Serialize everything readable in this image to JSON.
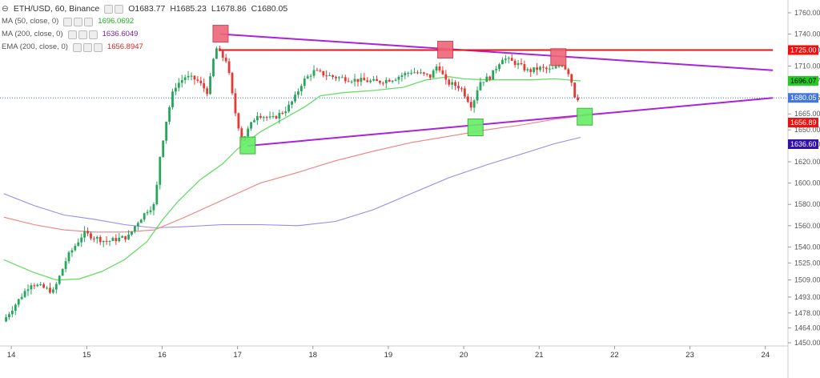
{
  "legend": {
    "symbol": "ETH/USD, 60, Binance",
    "ohlc": {
      "open": "O1683.77",
      "high": "H1685.23",
      "low": "L1678.86",
      "close": "C1680.05"
    },
    "indicators": [
      {
        "label": "MA (50, close, 0)",
        "value": "1696.0692",
        "color": "#22aa22"
      },
      {
        "label": "MA (200, close, 0)",
        "value": "1636.6049",
        "color": "#7722aa"
      },
      {
        "label": "EMA (200, close, 0)",
        "value": "1656.8947",
        "color": "#dd2222"
      }
    ]
  },
  "colors": {
    "up": "#26a65b",
    "down": "#e53935",
    "ma50": "#66dd66",
    "ma200": "#9988ee",
    "ema200": "#f08080",
    "trend": "#aa22dd",
    "resistance": "#ee1111",
    "marker_red": "#ee6677",
    "marker_green": "#66ee66",
    "price_line": "#4477cc"
  },
  "chart_data": {
    "type": "candlestick",
    "x_ticks": [
      {
        "label": "14",
        "x": 14
      },
      {
        "label": "15",
        "x": 15
      },
      {
        "label": "16",
        "x": 16
      },
      {
        "label": "17",
        "x": 17
      },
      {
        "label": "18",
        "x": 18
      },
      {
        "label": "19",
        "x": 19
      },
      {
        "label": "20",
        "x": 20
      },
      {
        "label": "21",
        "x": 21
      },
      {
        "label": "22",
        "x": 22
      },
      {
        "label": "23",
        "x": 23
      },
      {
        "label": "24",
        "x": 24
      }
    ],
    "y_ticks": [
      "1760.00",
      "1740.00",
      "1725.00",
      "1710.00",
      "1696.07",
      "1680.05",
      "1665.00",
      "1650.00",
      "1636.60",
      "1620.00",
      "1600.00",
      "1580.00",
      "1560.00",
      "1540.00",
      "1525.00",
      "1509.00",
      "1493.00",
      "1478.00",
      "1464.00",
      "1450.00"
    ],
    "y_tick_values": [
      1760,
      1740,
      1725,
      1710,
      1696.07,
      1680.05,
      1665,
      1650,
      1636.6,
      1620,
      1600,
      1580,
      1560,
      1540,
      1525,
      1509,
      1493,
      1478,
      1464,
      1450
    ],
    "price_tags": [
      {
        "label": "1725.00",
        "value": 1725,
        "bg": "#ee1111",
        "fg": "#ffffff"
      },
      {
        "label": "1696.07",
        "value": 1696.07,
        "bg": "#22cc22",
        "fg": "#000000"
      },
      {
        "label": "1680.05",
        "value": 1680.05,
        "bg": "#4477dd",
        "fg": "#ffffff"
      },
      {
        "label": "1656.89",
        "value": 1656.89,
        "bg": "#ee1111",
        "fg": "#ffffff"
      },
      {
        "label": "1636.60",
        "value": 1636.6,
        "bg": "#3311aa",
        "fg": "#ffffff"
      }
    ],
    "current_price": 1680.05,
    "trend_lines": [
      {
        "name": "upper-trendline",
        "x1": 16.77,
        "y1": 1740,
        "x2": 24.1,
        "y2": 1706,
        "color": "#aa22dd"
      },
      {
        "name": "lower-trendline",
        "x1": 17.13,
        "y1": 1635,
        "x2": 24.1,
        "y2": 1680,
        "color": "#aa22dd"
      },
      {
        "name": "resistance-line",
        "x1": 16.77,
        "y1": 1725,
        "x2": 24.1,
        "y2": 1725,
        "color": "#ee1111"
      }
    ],
    "markers": [
      {
        "name": "top-marker-1",
        "x": 16.77,
        "y": 1740,
        "type": "red"
      },
      {
        "name": "top-marker-2",
        "x": 19.75,
        "y": 1725,
        "type": "red"
      },
      {
        "name": "top-marker-3",
        "x": 21.25,
        "y": 1718,
        "type": "red"
      },
      {
        "name": "bottom-marker-1",
        "x": 17.13,
        "y": 1635,
        "type": "green"
      },
      {
        "name": "bottom-marker-2",
        "x": 20.15,
        "y": 1652,
        "type": "green"
      },
      {
        "name": "bottom-marker-3",
        "x": 21.6,
        "y": 1662,
        "type": "green"
      }
    ],
    "candle_anchors": [
      [
        13.93,
        1470
      ],
      [
        14.3,
        1506
      ],
      [
        14.6,
        1498
      ],
      [
        14.78,
        1530
      ],
      [
        15.0,
        1553
      ],
      [
        15.3,
        1545
      ],
      [
        15.6,
        1550
      ],
      [
        15.7,
        1562
      ],
      [
        15.85,
        1575
      ],
      [
        15.95,
        1580
      ],
      [
        16.0,
        1620
      ],
      [
        16.1,
        1660
      ],
      [
        16.2,
        1690
      ],
      [
        16.35,
        1700
      ],
      [
        16.5,
        1697
      ],
      [
        16.65,
        1685
      ],
      [
        16.75,
        1728
      ],
      [
        16.82,
        1720
      ],
      [
        16.9,
        1715
      ],
      [
        17.0,
        1670
      ],
      [
        17.1,
        1640
      ],
      [
        17.3,
        1665
      ],
      [
        17.5,
        1660
      ],
      [
        17.7,
        1670
      ],
      [
        17.8,
        1680
      ],
      [
        17.9,
        1695
      ],
      [
        18.05,
        1705
      ],
      [
        18.3,
        1700
      ],
      [
        18.6,
        1697
      ],
      [
        18.9,
        1695
      ],
      [
        19.1,
        1698
      ],
      [
        19.35,
        1705
      ],
      [
        19.6,
        1700
      ],
      [
        19.7,
        1712
      ],
      [
        19.8,
        1695
      ],
      [
        20.0,
        1690
      ],
      [
        20.15,
        1672
      ],
      [
        20.25,
        1695
      ],
      [
        20.4,
        1700
      ],
      [
        20.55,
        1718
      ],
      [
        20.75,
        1712
      ],
      [
        20.9,
        1705
      ],
      [
        21.05,
        1708
      ],
      [
        21.2,
        1706
      ],
      [
        21.35,
        1712
      ],
      [
        21.45,
        1702
      ],
      [
        21.52,
        1680
      ]
    ],
    "ma50_points": [
      [
        13.9,
        1528
      ],
      [
        14.3,
        1516
      ],
      [
        14.6,
        1509
      ],
      [
        14.9,
        1510
      ],
      [
        15.2,
        1517
      ],
      [
        15.5,
        1528
      ],
      [
        15.8,
        1545
      ],
      [
        16.0,
        1565
      ],
      [
        16.2,
        1582
      ],
      [
        16.5,
        1603
      ],
      [
        16.8,
        1618
      ],
      [
        17.0,
        1632
      ],
      [
        17.3,
        1648
      ],
      [
        17.6,
        1660
      ],
      [
        17.9,
        1672
      ],
      [
        18.1,
        1682
      ],
      [
        18.4,
        1685
      ],
      [
        18.8,
        1687
      ],
      [
        19.2,
        1690
      ],
      [
        19.5,
        1697
      ],
      [
        19.8,
        1700
      ],
      [
        20.0,
        1698
      ],
      [
        20.3,
        1697
      ],
      [
        20.6,
        1697
      ],
      [
        20.9,
        1697
      ],
      [
        21.2,
        1698
      ],
      [
        21.55,
        1696
      ]
    ],
    "ma200_points": [
      [
        13.9,
        1590
      ],
      [
        14.3,
        1579
      ],
      [
        14.7,
        1570
      ],
      [
        15.1,
        1566
      ],
      [
        15.5,
        1561
      ],
      [
        15.9,
        1558
      ],
      [
        16.3,
        1559
      ],
      [
        16.8,
        1561
      ],
      [
        17.3,
        1561
      ],
      [
        17.8,
        1560
      ],
      [
        18.3,
        1564
      ],
      [
        18.8,
        1575
      ],
      [
        19.3,
        1590
      ],
      [
        19.8,
        1605
      ],
      [
        20.3,
        1617
      ],
      [
        20.8,
        1628
      ],
      [
        21.2,
        1637
      ],
      [
        21.55,
        1643
      ]
    ],
    "ema200_points": [
      [
        13.9,
        1568
      ],
      [
        14.3,
        1561
      ],
      [
        14.7,
        1556
      ],
      [
        15.1,
        1554
      ],
      [
        15.5,
        1554
      ],
      [
        15.9,
        1556
      ],
      [
        16.3,
        1568
      ],
      [
        16.8,
        1584
      ],
      [
        17.3,
        1600
      ],
      [
        17.8,
        1610
      ],
      [
        18.3,
        1621
      ],
      [
        18.8,
        1630
      ],
      [
        19.3,
        1638
      ],
      [
        19.8,
        1644
      ],
      [
        20.3,
        1650
      ],
      [
        20.8,
        1655
      ],
      [
        21.2,
        1660
      ],
      [
        21.55,
        1663
      ]
    ]
  }
}
